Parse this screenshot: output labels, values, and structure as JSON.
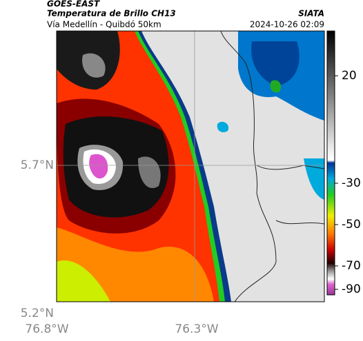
{
  "header": {
    "title": "GOES-EAST",
    "subtitle": "Temperatura de Brillo CH13",
    "caption": "Vía Medellín - Quibdó 50km",
    "source": "SIATA",
    "timestamp": "2024-10-26 02:09"
  },
  "map": {
    "lat_labels": [
      "5.7°N",
      "5.2°N"
    ],
    "lon_labels": [
      "76.8°W",
      "76.3°W"
    ]
  },
  "colorbar": {
    "ticks": [
      20,
      -30,
      -50,
      -70,
      -90
    ]
  }
}
